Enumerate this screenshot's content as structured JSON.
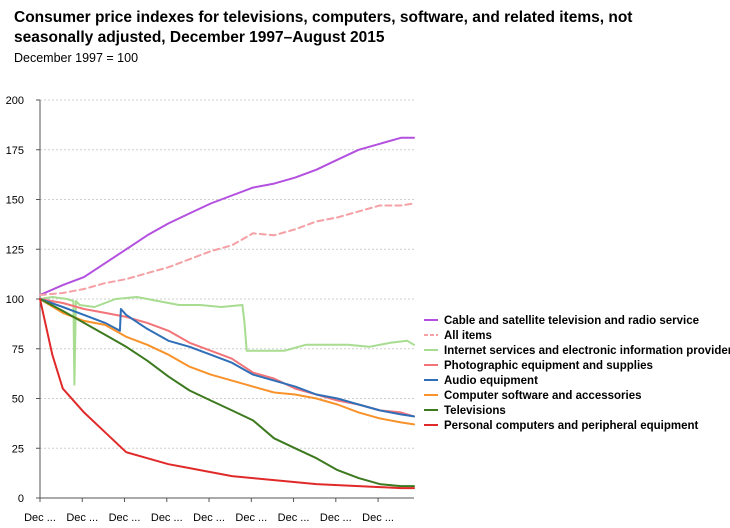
{
  "chart_data": {
    "type": "line",
    "title": "Consumer price indexes for televisions, computers, software, and related items, not seasonally adjusted, December 1997–August 2015",
    "subtitle": "December 1997 = 100",
    "xlabel": "",
    "ylabel": "",
    "ylim": [
      0,
      200
    ],
    "yticks": [
      0,
      25,
      50,
      75,
      100,
      125,
      150,
      175,
      200
    ],
    "xlim": [
      1997.92,
      2015.62
    ],
    "xtick_labels": [
      "Dec ...",
      "Dec ...",
      "Dec ...",
      "Dec ...",
      "Dec ...",
      "Dec ...",
      "Dec ...",
      "Dec ...",
      "Dec ..."
    ],
    "xtick_years": [
      1997.92,
      1999.92,
      2001.92,
      2003.92,
      2005.92,
      2007.92,
      2009.92,
      2011.92,
      2013.92
    ],
    "grid": "horizontal dashed",
    "legend_position": "right",
    "series": [
      {
        "name": "Cable and satellite television and radio service",
        "color": "#b450e0",
        "dash": false,
        "x": [
          1997.92,
          1999,
          2000,
          2001,
          2002,
          2003,
          2004,
          2005,
          2006,
          2007,
          2008,
          2009,
          2010,
          2011,
          2012,
          2013,
          2014,
          2015,
          2015.62
        ],
        "values": [
          102,
          107,
          111,
          118,
          125,
          132,
          138,
          143,
          148,
          152,
          156,
          158,
          161,
          165,
          170,
          175,
          178,
          181,
          181
        ]
      },
      {
        "name": "All items",
        "color": "#f4a0a4",
        "dash": true,
        "x": [
          1997.92,
          1999,
          2000,
          2001,
          2002,
          2003,
          2004,
          2005,
          2006,
          2007,
          2008,
          2009,
          2010,
          2011,
          2012,
          2013,
          2014,
          2015,
          2015.62
        ],
        "values": [
          102,
          103,
          105,
          108,
          110,
          113,
          116,
          120,
          124,
          127,
          133,
          132,
          135,
          139,
          141,
          144,
          147,
          147,
          148
        ]
      },
      {
        "name": "Internet services and electronic information providers",
        "color": "#a8dc90",
        "dash": false,
        "x": [
          1997.92,
          1998.5,
          1999.2,
          1999.5,
          1999.55,
          1999.62,
          1999.8,
          2000.5,
          2001.5,
          2002.5,
          2003.5,
          2004.5,
          2005.5,
          2006.5,
          2007.5,
          2007.6,
          2007.7,
          2008.5,
          2009.5,
          2010.5,
          2011.5,
          2012.5,
          2013.5,
          2014.5,
          2015.3,
          2015.62
        ],
        "values": [
          100,
          101,
          100,
          99,
          57,
          99,
          97,
          96,
          100,
          101,
          99,
          97,
          97,
          96,
          97,
          88,
          74,
          74,
          74,
          77,
          77,
          77,
          76,
          78,
          79,
          77
        ]
      },
      {
        "name": "Photographic equipment and supplies",
        "color": "#f27478",
        "dash": false,
        "x": [
          1997.92,
          1999,
          2000,
          2001,
          2002,
          2003,
          2004,
          2005,
          2006,
          2007,
          2008,
          2009,
          2010,
          2011,
          2012,
          2013,
          2014,
          2015,
          2015.62
        ],
        "values": [
          100,
          98,
          95,
          93,
          91,
          88,
          84,
          78,
          74,
          70,
          63,
          60,
          55,
          52,
          49,
          47,
          44,
          43,
          41
        ]
      },
      {
        "name": "Audio equipment",
        "color": "#2f6fb8",
        "dash": false,
        "x": [
          1997.92,
          1999,
          2000,
          2001,
          2001.7,
          2001.75,
          2002,
          2003,
          2004,
          2005,
          2006,
          2007,
          2008,
          2009,
          2010,
          2011,
          2012,
          2013,
          2014,
          2015,
          2015.62
        ],
        "values": [
          100,
          96,
          92,
          88,
          84,
          95,
          92,
          85,
          79,
          76,
          72,
          68,
          62,
          59,
          56,
          52,
          50,
          47,
          44,
          42,
          41
        ]
      },
      {
        "name": "Computer software and accessories",
        "color": "#f8922b",
        "dash": false,
        "x": [
          1997.92,
          1999,
          2000,
          2001,
          2002,
          2003,
          2004,
          2005,
          2006,
          2007,
          2008,
          2009,
          2010,
          2011,
          2012,
          2013,
          2014,
          2015,
          2015.62
        ],
        "values": [
          100,
          93,
          89,
          87,
          81,
          77,
          72,
          66,
          62,
          59,
          56,
          53,
          52,
          50,
          47,
          43,
          40,
          38,
          37
        ]
      },
      {
        "name": "Televisions",
        "color": "#3d7a1f",
        "dash": false,
        "x": [
          1997.92,
          1999,
          2000,
          2001,
          2002,
          2003,
          2004,
          2005,
          2006,
          2007,
          2008,
          2009,
          2010,
          2011,
          2012,
          2013,
          2014,
          2015,
          2015.62
        ],
        "values": [
          100,
          94,
          88,
          82,
          76,
          69,
          61,
          54,
          49,
          44,
          39,
          30,
          25,
          20,
          14,
          10,
          7,
          6,
          6
        ]
      },
      {
        "name": "Personal computers and peripheral equipment",
        "color": "#e02a2a",
        "dash": false,
        "x": [
          1997.92,
          1998.5,
          1999,
          2000,
          2001,
          2002,
          2003,
          2004,
          2005,
          2006,
          2007,
          2008,
          2009,
          2010,
          2011,
          2012,
          2013,
          2014,
          2015,
          2015.62
        ],
        "values": [
          100,
          72,
          55,
          43,
          33,
          23,
          20,
          17,
          15,
          13,
          11,
          10,
          9,
          8,
          7,
          6.5,
          6,
          5.5,
          5,
          5
        ]
      }
    ]
  }
}
